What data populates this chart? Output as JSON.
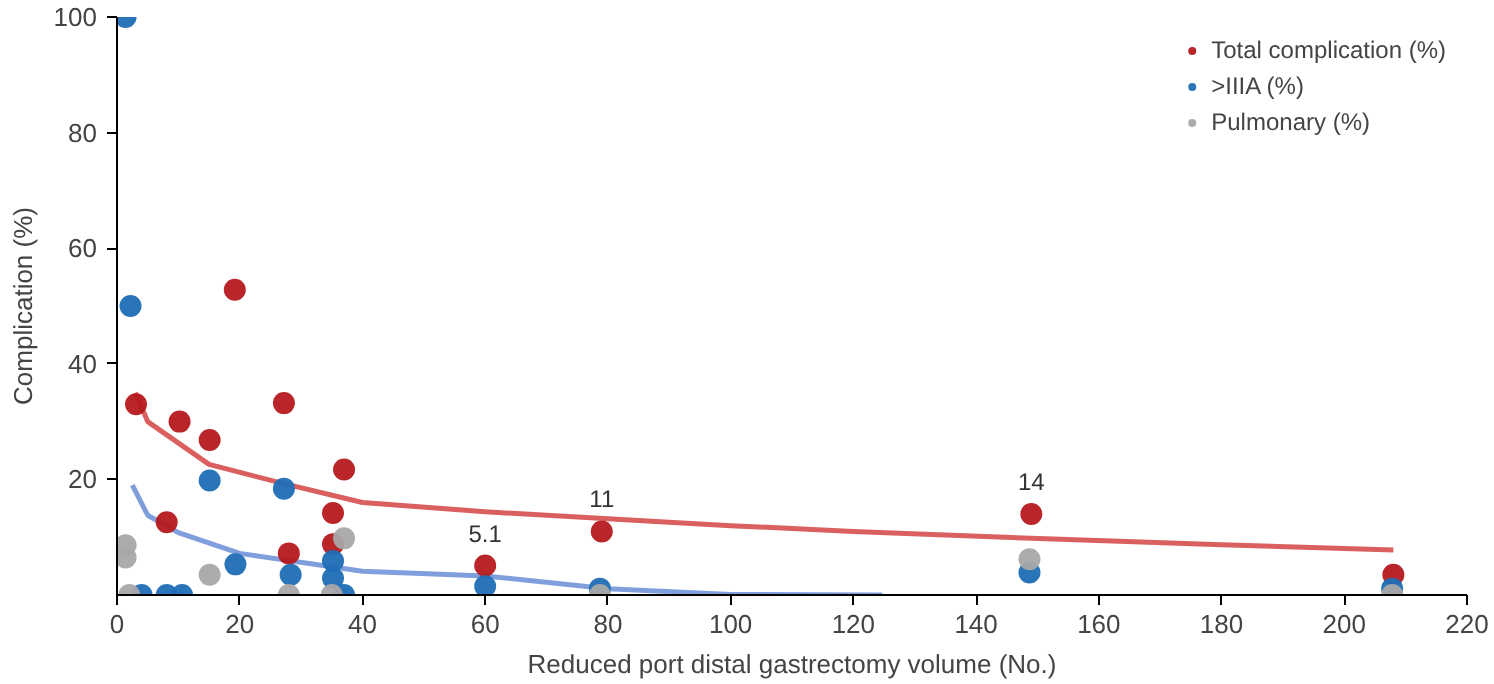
{
  "chart_data": {
    "type": "scatter",
    "xlabel": "Reduced port distal gastrectomy volume (No.)",
    "ylabel": "Complication (%)",
    "xlim": [
      0,
      220
    ],
    "xticks": [
      0,
      20,
      40,
      60,
      80,
      100,
      120,
      140,
      160,
      180,
      200,
      220
    ],
    "ylim": [
      0,
      100
    ],
    "yticks": [
      20,
      40,
      60,
      80,
      100
    ],
    "grid": false,
    "legend": "top right",
    "marker": "circle",
    "series": [
      {
        "name": "Total complication (%)",
        "color": "#b5191c",
        "x": [
          3.1,
          19.2,
          10.2,
          15.1,
          8.1,
          27.2,
          28,
          37,
          35.2,
          35.2,
          60,
          79,
          149,
          208
        ],
        "values": [
          33,
          52.8,
          30,
          26.8,
          12.6,
          33.2,
          7.2,
          21.7,
          14.2,
          8.8,
          5.1,
          11,
          14,
          3.5
        ]
      },
      {
        "name": ">IIIA (%)",
        "color": "#1f6db5",
        "x": [
          1.4,
          2.2,
          15.1,
          27.2,
          19.3,
          28.3,
          35.2,
          35.2,
          37,
          4,
          8.1,
          10.6,
          60,
          78.7,
          148.7,
          207.8
        ],
        "values": [
          100,
          50,
          19.8,
          18.4,
          5.3,
          3.5,
          5.9,
          2.9,
          0,
          0,
          0,
          0,
          1.5,
          1.1,
          3.9,
          1.1
        ]
      },
      {
        "name": "Pulmonary (%)",
        "color": "#a8a8a8",
        "x": [
          1.4,
          1.4,
          2,
          15.1,
          28,
          35,
          37,
          78.7,
          148.7,
          207.8
        ],
        "values": [
          8.6,
          6.5,
          0,
          3.5,
          0,
          0,
          9.8,
          0,
          6.2,
          0
        ]
      },
      {
        "type": "line",
        "color": "#d9605e",
        "marker": "none",
        "x": [
          3,
          5,
          15,
          27,
          40,
          60,
          80,
          100,
          120,
          149,
          180,
          208
        ],
        "values": [
          35,
          30,
          22.6,
          19.3,
          16,
          14.4,
          13.2,
          12,
          11,
          9.8,
          8.7,
          7.8
        ]
      },
      {
        "type": "line",
        "color": "#7f9fdc",
        "marker": "none",
        "x": [
          2.5,
          5,
          10,
          20,
          40,
          60,
          80,
          100,
          124.7
        ],
        "values": [
          19,
          13.8,
          10.8,
          7.2,
          4.1,
          3.3,
          1.1,
          0.1,
          0
        ]
      }
    ],
    "annotations": [
      {
        "text": "5.1",
        "x": 60,
        "y": 5.1
      },
      {
        "text": "11",
        "x": 79,
        "y": 11
      },
      {
        "text": "14",
        "x": 149,
        "y": 14
      }
    ]
  }
}
